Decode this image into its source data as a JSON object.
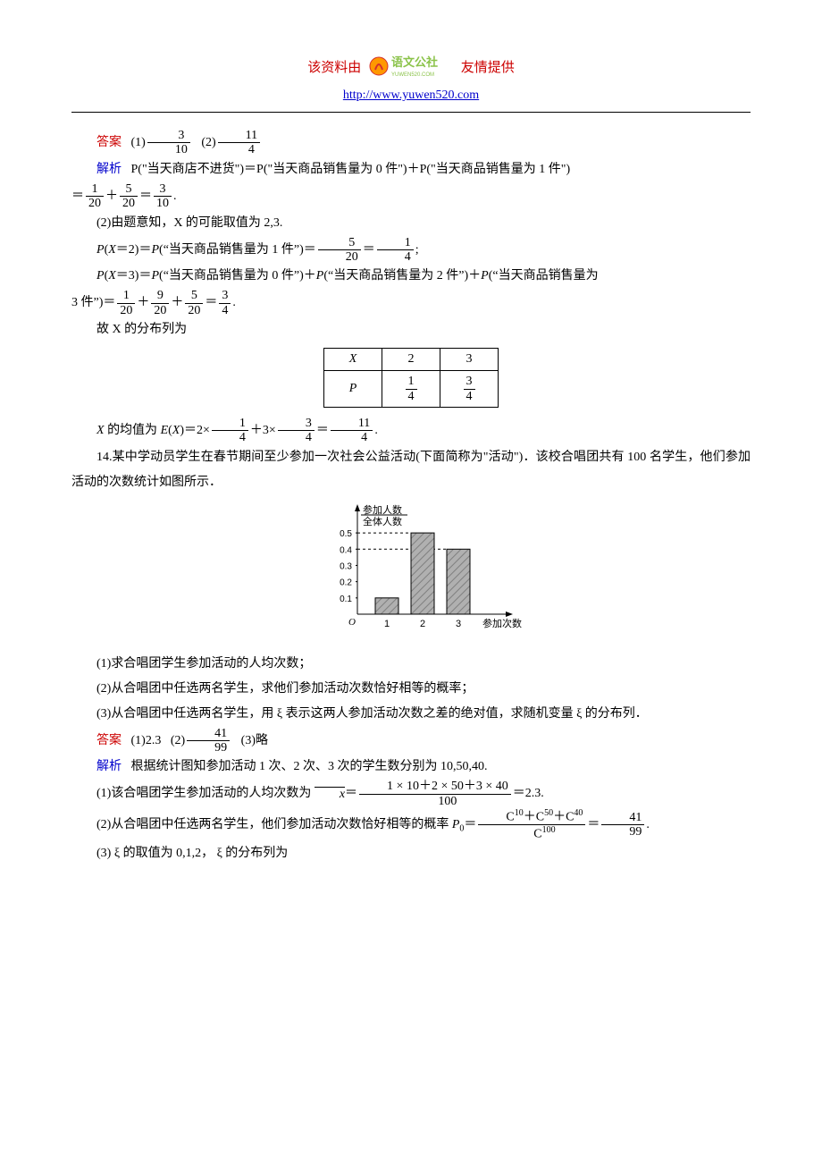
{
  "header": {
    "prefix": "该资料由",
    "suffix": "友情提供",
    "url": "http://www.yuwen520.com",
    "logo_text_top": "语文公社",
    "logo_text_sub": "YUWEN520.COM",
    "logo_bg": "#8bc34a",
    "logo_text_color": "#ffffff",
    "logo_stroke": "#d32f2f"
  },
  "colors": {
    "answer_label": "#cc0000",
    "analysis_label": "#0000cc",
    "url": "#0000cc",
    "text": "#000000"
  },
  "labels": {
    "answer": "答案",
    "analysis": "解析"
  },
  "q13": {
    "ans1_num": "3",
    "ans1_den": "10",
    "ans2_num": "11",
    "ans2_den": "4",
    "analysis1_prefix": "(1)",
    "p_nogoods": "P(\"当天商店不进货\")＝P(\"当天商品销售量为 0 件\")＋P(\"当天商品销售量为 1 件\")",
    "f1a_num": "1",
    "f1a_den": "20",
    "f1b_num": "5",
    "f1b_den": "20",
    "f1c_num": "3",
    "f1c_den": "10",
    "part2_intro": "(2)由题意知，X 的可能取值为 2,3.",
    "px2_text": "P(X＝2)＝P(\"当天商品销售量为 1 件\")＝",
    "px2a_num": "5",
    "px2a_den": "20",
    "px2b_num": "1",
    "px2b_den": "4",
    "px3_text": "P(X＝3)＝P(\"当天商品销售量为 0 件\")＋P(\"当天商品销售量为 2 件\")＋P(\"当天商品销售量为 3 件\")＝",
    "px3a_num": "1",
    "px3a_den": "20",
    "px3b_num": "9",
    "px3b_den": "20",
    "px3c_num": "5",
    "px3c_den": "20",
    "px3d_num": "3",
    "px3d_den": "4",
    "dist_intro": "故 X 的分布列为",
    "table": {
      "h1": "X",
      "h2": "2",
      "h3": "3",
      "r1": "P",
      "c21_num": "1",
      "c21_den": "4",
      "c22_num": "3",
      "c22_den": "4"
    },
    "ex_prefix": "X 的均值为 E(X)＝2×",
    "ex_mid": "＋3×",
    "exa_num": "1",
    "exa_den": "4",
    "exb_num": "3",
    "exb_den": "4",
    "exc_num": "11",
    "exc_den": "4"
  },
  "q14": {
    "stem1": "14.某中学动员学生在春节期间至少参加一次社会公益活动(下面简称为\"活动\")．该校合唱团共有 100 名学生，他们参加活动的次数统计如图所示．",
    "sub1": "(1)求合唱团学生参加活动的人均次数；",
    "sub2": "(2)从合唱团中任选两名学生，求他们参加活动次数恰好相等的概率；",
    "sub3": "(3)从合唱团中任选两名学生，用 ξ 表示这两人参加活动次数之差的绝对值，求随机变量 ξ 的分布列．",
    "ans1": "(1)2.3",
    "ans2_pre": "(2)",
    "ans2_num": "41",
    "ans2_den": "99",
    "ans3": "(3)略",
    "ana_intro": "根据统计图知参加活动 1 次、2 次、3 次的学生数分别为 10,50,40.",
    "a1_pre": "(1)该合唱团学生参加活动的人均次数为 ",
    "a1_xbar": "x",
    "a1_num": "1 × 10＋2 × 50＋3 × 40",
    "a1_den": "100",
    "a1_result": "＝2.3.",
    "a2_pre": "(2)从合唱团中任选两名学生，他们参加活动次数恰好相等的概率 ",
    "a2_p0": "P",
    "a2_p0sub": "0",
    "a2_eq": "＝",
    "a2_num_a": "C",
    "a2_num_a_sup": "10",
    "a2_num_b": "C",
    "a2_num_b_sup": "50",
    "a2_num_c": "C",
    "a2_num_c_sup": "40",
    "a2_den_a": "C",
    "a2_den_a_sup": "100",
    "a2_res_num": "41",
    "a2_res_den": "99",
    "a3": "(3) ξ 的取值为 0,1,2， ξ 的分布列为",
    "chart": {
      "y_label_top": "参加人数",
      "y_label_bot": "全体人数",
      "x_label": "参加次数",
      "y_ticks": [
        "0.1",
        "0.2",
        "0.3",
        "0.4",
        "0.5"
      ],
      "x_ticks": [
        "1",
        "2",
        "3"
      ],
      "bars": [
        0.1,
        0.5,
        0.4
      ],
      "ylim": [
        0,
        0.55
      ],
      "bar_fill": "#b0b0b0",
      "bar_hatch": "#808080",
      "axis_color": "#000000",
      "grid_dash": "#000000"
    }
  }
}
